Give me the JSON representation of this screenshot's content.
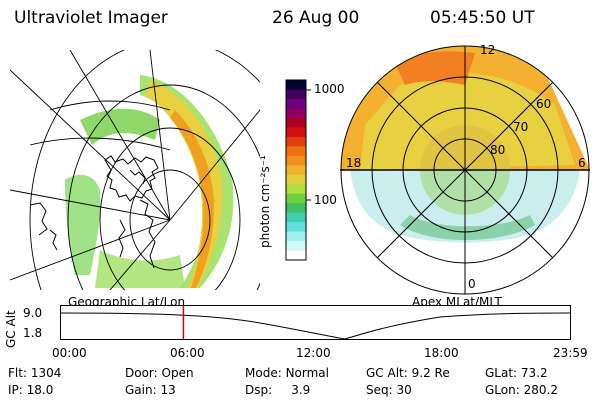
{
  "header": {
    "instrument": "Ultraviolet Imager",
    "date": "26 Aug 00",
    "time": "05:45:50 UT"
  },
  "left_panel": {
    "caption": "Geographic Lat/Lon"
  },
  "right_panel": {
    "caption": "Apex MLat/MLT",
    "mlt_labels": [
      "12",
      "18",
      "6",
      "0"
    ],
    "mlat_labels": [
      "60",
      "70",
      "80"
    ]
  },
  "colorbar": {
    "unit_label": "photon cm⁻²s⁻¹",
    "ticks": [
      "1000",
      "100"
    ],
    "colors": [
      "#000030",
      "#400060",
      "#700080",
      "#900060",
      "#b00020",
      "#d01010",
      "#e04010",
      "#f07010",
      "#f09020",
      "#f0b030",
      "#e0d040",
      "#b0e040",
      "#70d040",
      "#40c060",
      "#40d0b0",
      "#60e0e0",
      "#a0f0f0",
      "#d0f8f8",
      "#ffffff"
    ]
  },
  "timeline": {
    "y_label": "GC Alt",
    "y_top": "9.0",
    "y_bottom": "1.8",
    "x_ticks": [
      "00:00",
      "06:00",
      "12:00",
      "18:00",
      "23:59"
    ],
    "current_marker_fraction": 0.242,
    "marker_color": "#e00000"
  },
  "status": {
    "flt": {
      "label": "Flt:",
      "value": "1304"
    },
    "ip": {
      "label": "IP:",
      "value": "18.0"
    },
    "door": {
      "label": "Door:",
      "value": "Open"
    },
    "gain": {
      "label": "Gain:",
      "value": "13"
    },
    "mode": {
      "label": "Mode:",
      "value": "Normal"
    },
    "dsp": {
      "label": "Dsp:",
      "value": "3.9"
    },
    "gcalt": {
      "label": "GC Alt:",
      "value": "9.2 Re"
    },
    "seq": {
      "label": "Seq:",
      "value": "30"
    },
    "glat": {
      "label": "GLat:",
      "value": "73.2"
    },
    "glon": {
      "label": "GLon:",
      "value": "280.2"
    }
  }
}
